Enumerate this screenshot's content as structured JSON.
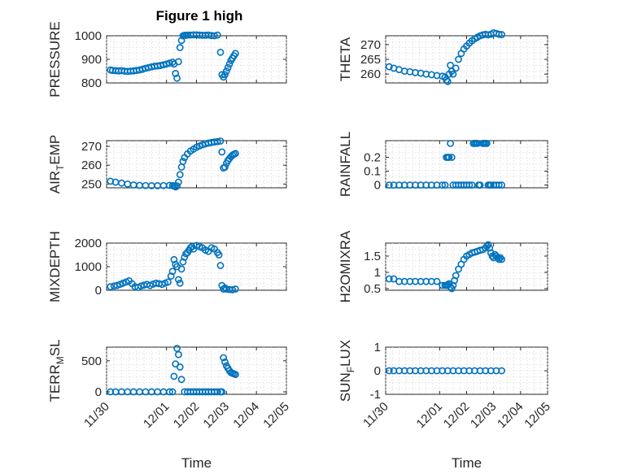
{
  "figure": {
    "title": "Figure 1 high",
    "colors": {
      "marker": "#0072BD",
      "axis": "#262626",
      "grid": "#d9d9d9"
    }
  },
  "chart_data": [
    {
      "type": "scatter",
      "ylabel": "PRESSURE",
      "ylim": [
        800,
        1000
      ],
      "yticks": [
        "800",
        "900",
        "1000"
      ],
      "xlim": [
        "11/30",
        "12/05"
      ],
      "xticks": [
        "11/30",
        "12/01",
        "12/02",
        "12/03",
        "12/04",
        "12/05"
      ],
      "xticklabels_shown": false,
      "grid": true,
      "series": [
        {
          "x": [
            0.13,
            0.2,
            0.3,
            0.4,
            0.5,
            0.6,
            0.7,
            0.8,
            0.9,
            1.0,
            1.1,
            1.2,
            1.3,
            1.4,
            1.5,
            1.6,
            1.7,
            1.8,
            1.9,
            2.0,
            2.1,
            2.2,
            2.25,
            2.3,
            2.35,
            2.4,
            2.45,
            2.5,
            2.55,
            2.6,
            2.65,
            2.7,
            2.8,
            2.9,
            3.0,
            3.1,
            3.2,
            3.3,
            3.4,
            3.5,
            3.6,
            3.7,
            3.8,
            3.85,
            3.9,
            3.95,
            4.0,
            4.05,
            4.1,
            4.15,
            4.2,
            4.25,
            4.3
          ],
          "y": [
            855,
            853,
            852,
            851,
            852,
            850,
            849,
            850,
            851,
            853,
            855,
            858,
            862,
            865,
            868,
            871,
            872,
            874,
            877,
            880,
            884,
            888,
            880,
            840,
            820,
            890,
            950,
            980,
            1000,
            1002,
            1002,
            1003,
            1003,
            1004,
            1004,
            1003,
            1002,
            1002,
            1003,
            1001,
            1000,
            1003,
            930,
            835,
            825,
            835,
            850,
            865,
            880,
            895,
            905,
            915,
            925
          ]
        }
      ]
    },
    {
      "type": "scatter",
      "ylabel": "THETA",
      "ylim": [
        257,
        273
      ],
      "yticks": [
        "260",
        "265",
        "270"
      ],
      "xlim": [
        "11/30",
        "12/05"
      ],
      "xticks": [
        "11/30",
        "12/01",
        "12/02",
        "12/03",
        "12/04",
        "12/05"
      ],
      "xticklabels_shown": false,
      "grid": true,
      "series": [
        {
          "x": [
            0.13,
            0.3,
            0.5,
            0.7,
            0.9,
            1.1,
            1.3,
            1.5,
            1.7,
            1.9,
            2.1,
            2.2,
            2.25,
            2.3,
            2.35,
            2.4,
            2.45,
            2.5,
            2.6,
            2.7,
            2.8,
            2.9,
            3.0,
            3.1,
            3.2,
            3.3,
            3.4,
            3.5,
            3.6,
            3.7,
            3.8,
            3.9,
            4.0,
            4.1,
            4.2,
            4.3
          ],
          "y": [
            262.5,
            262,
            261.5,
            261,
            260.8,
            260.5,
            260.3,
            260,
            259.8,
            259.5,
            259.3,
            259,
            258,
            257.5,
            260,
            263,
            261,
            260,
            262,
            265,
            267,
            268.5,
            269.5,
            270.5,
            271.3,
            272,
            272.5,
            273,
            273.3,
            273.5,
            273.3,
            273.5,
            274,
            273.8,
            273.5,
            273.4
          ]
        }
      ]
    },
    {
      "type": "scatter",
      "ylabel": "AIR_TEMP",
      "ylim": [
        248,
        273
      ],
      "yticks": [
        "250",
        "260",
        "270"
      ],
      "xlim": [
        "11/30",
        "12/05"
      ],
      "xticks": [
        "11/30",
        "12/01",
        "12/02",
        "12/03",
        "12/04",
        "12/05"
      ],
      "xticklabels_shown": false,
      "grid": true,
      "series": [
        {
          "x": [
            0.13,
            0.3,
            0.5,
            0.7,
            0.9,
            1.1,
            1.3,
            1.5,
            1.7,
            1.9,
            2.1,
            2.2,
            2.25,
            2.3,
            2.35,
            2.4,
            2.45,
            2.5,
            2.55,
            2.6,
            2.7,
            2.8,
            2.9,
            3.0,
            3.1,
            3.2,
            3.3,
            3.4,
            3.5,
            3.6,
            3.7,
            3.8,
            3.85,
            3.9,
            3.95,
            4.0,
            4.05,
            4.1,
            4.15,
            4.2,
            4.25,
            4.3
          ],
          "y": [
            251.5,
            251,
            250.5,
            250,
            249.5,
            249.3,
            249.2,
            249.1,
            249.1,
            249.2,
            249.3,
            249.2,
            249,
            248.5,
            249,
            251,
            255,
            259,
            262,
            264,
            266,
            267.5,
            268.5,
            269.5,
            270.2,
            270.8,
            271.3,
            271.7,
            272,
            272.3,
            272.5,
            272.8,
            267,
            258.5,
            259,
            261,
            262.5,
            263.5,
            264.5,
            265.3,
            265.8,
            266.2
          ]
        }
      ]
    },
    {
      "type": "scatter",
      "ylabel": "RAINFALL",
      "ylim": [
        -0.02,
        0.32
      ],
      "yticks": [
        "0",
        "0.1",
        "0.2"
      ],
      "xlim": [
        "11/30",
        "12/05"
      ],
      "xticks": [
        "11/30",
        "12/01",
        "12/02",
        "12/03",
        "12/04",
        "12/05"
      ],
      "xticklabels_shown": false,
      "grid": true,
      "series": [
        {
          "x": [
            0.13,
            0.3,
            0.5,
            0.7,
            0.9,
            1.1,
            1.3,
            1.5,
            1.7,
            1.9,
            2.1,
            2.2,
            2.25,
            2.3,
            2.35,
            2.4,
            2.45,
            2.5,
            2.6,
            2.7,
            2.8,
            2.9,
            3.0,
            3.1,
            3.2,
            3.25,
            3.3,
            3.35,
            3.4,
            3.45,
            3.5,
            3.6,
            3.65,
            3.7,
            3.75,
            3.8,
            3.85,
            3.9,
            4.0,
            4.1,
            4.2,
            4.3
          ],
          "y": [
            0,
            0,
            0,
            0,
            0,
            0,
            0,
            0,
            0,
            0,
            0,
            0,
            0.2,
            0.2,
            0.2,
            0.3,
            0.2,
            0,
            0,
            0,
            0,
            0,
            0,
            0,
            0,
            0.3,
            0.3,
            0.3,
            0.3,
            0,
            0,
            0.3,
            0.3,
            0.3,
            0.3,
            0,
            0,
            0,
            0,
            0,
            0,
            0
          ]
        }
      ]
    },
    {
      "type": "scatter",
      "ylabel": "MIXDEPTH",
      "ylim": [
        0,
        2000
      ],
      "yticks": [
        "0",
        "1000",
        "2000"
      ],
      "xlim": [
        "11/30",
        "12/05"
      ],
      "xticks": [
        "11/30",
        "12/01",
        "12/02",
        "12/03",
        "12/04",
        "12/05"
      ],
      "xticklabels_shown": false,
      "grid": true,
      "series": [
        {
          "x": [
            0.13,
            0.25,
            0.35,
            0.45,
            0.55,
            0.65,
            0.75,
            0.85,
            0.95,
            1.05,
            1.15,
            1.25,
            1.35,
            1.45,
            1.55,
            1.65,
            1.75,
            1.85,
            1.95,
            2.05,
            2.15,
            2.2,
            2.25,
            2.3,
            2.35,
            2.4,
            2.45,
            2.5,
            2.55,
            2.6,
            2.65,
            2.7,
            2.75,
            2.8,
            2.85,
            2.9,
            3.0,
            3.1,
            3.2,
            3.3,
            3.4,
            3.5,
            3.6,
            3.7,
            3.75,
            3.8,
            3.85,
            3.9,
            3.95,
            4.0,
            4.1,
            4.2,
            4.3
          ],
          "y": [
            150,
            180,
            200,
            250,
            300,
            350,
            400,
            280,
            150,
            120,
            180,
            220,
            250,
            200,
            260,
            300,
            280,
            250,
            300,
            350,
            600,
            800,
            1300,
            1100,
            1000,
            450,
            300,
            900,
            1200,
            1400,
            1550,
            1600,
            1700,
            1800,
            1850,
            1750,
            1900,
            1850,
            1800,
            1700,
            1650,
            1800,
            1750,
            1600,
            1500,
            1050,
            200,
            50,
            100,
            50,
            30,
            20,
            50
          ]
        }
      ]
    },
    {
      "type": "scatter",
      "ylabel": "H2OMIXRA",
      "ylim": [
        0.45,
        1.9
      ],
      "yticks": [
        "0.5",
        "1",
        "1.5"
      ],
      "xlim": [
        "11/30",
        "12/05"
      ],
      "xticks": [
        "11/30",
        "12/01",
        "12/02",
        "12/03",
        "12/04",
        "12/05"
      ],
      "xticklabels_shown": false,
      "grid": true,
      "series": [
        {
          "x": [
            0.13,
            0.3,
            0.5,
            0.7,
            0.9,
            1.1,
            1.3,
            1.5,
            1.7,
            1.9,
            2.1,
            2.2,
            2.25,
            2.3,
            2.35,
            2.4,
            2.45,
            2.5,
            2.55,
            2.6,
            2.7,
            2.8,
            2.9,
            3.0,
            3.1,
            3.2,
            3.3,
            3.4,
            3.5,
            3.6,
            3.7,
            3.75,
            3.8,
            3.85,
            3.9,
            3.95,
            4.0,
            4.05,
            4.1,
            4.15,
            4.2,
            4.25,
            4.3
          ],
          "y": [
            0.8,
            0.8,
            0.72,
            0.72,
            0.72,
            0.72,
            0.72,
            0.72,
            0.72,
            0.72,
            0.6,
            0.6,
            0.6,
            0.62,
            0.65,
            0.55,
            0.5,
            0.6,
            0.75,
            0.9,
            1.1,
            1.25,
            1.4,
            1.5,
            1.55,
            1.6,
            1.62,
            1.65,
            1.68,
            1.7,
            1.75,
            1.8,
            1.85,
            1.75,
            1.6,
            1.5,
            1.45,
            1.55,
            1.5,
            1.45,
            1.4,
            1.45,
            1.4
          ]
        }
      ]
    },
    {
      "type": "scatter",
      "ylabel": "TERR_MSL",
      "ylim": [
        -40,
        720
      ],
      "yticks": [
        "0",
        "500"
      ],
      "xlim": [
        "11/30",
        "12/05"
      ],
      "xticks": [
        "11/30",
        "12/01",
        "12/02",
        "12/03",
        "12/04",
        "12/05"
      ],
      "xticklabels_shown": true,
      "xlabel": "Time",
      "grid": true,
      "series": [
        {
          "x": [
            0.13,
            0.3,
            0.5,
            0.7,
            0.9,
            1.1,
            1.3,
            1.5,
            1.7,
            1.9,
            2.1,
            2.2,
            2.25,
            2.3,
            2.35,
            2.4,
            2.45,
            2.5,
            2.6,
            2.7,
            2.8,
            2.9,
            3.0,
            3.1,
            3.2,
            3.3,
            3.4,
            3.5,
            3.6,
            3.7,
            3.8,
            3.85,
            3.9,
            3.95,
            4.0,
            4.05,
            4.1,
            4.15,
            4.2,
            4.25,
            4.3
          ],
          "y": [
            0,
            0,
            0,
            0,
            0,
            0,
            0,
            0,
            0,
            0,
            0,
            0,
            250,
            450,
            700,
            600,
            400,
            200,
            0,
            0,
            0,
            0,
            0,
            0,
            0,
            0,
            0,
            0,
            0,
            0,
            0,
            0,
            550,
            480,
            420,
            380,
            340,
            310,
            300,
            290,
            280
          ]
        }
      ]
    },
    {
      "type": "scatter",
      "ylabel": "SUN_FLUX",
      "ylim": [
        -1,
        1
      ],
      "yticks": [
        "-1",
        "0",
        "1"
      ],
      "xlim": [
        "11/30",
        "12/05"
      ],
      "xticks": [
        "11/30",
        "12/01",
        "12/02",
        "12/03",
        "12/04",
        "12/05"
      ],
      "xticklabels_shown": true,
      "xlabel": "Time",
      "grid": true,
      "series": [
        {
          "x": [
            0.13,
            0.3,
            0.5,
            0.7,
            0.9,
            1.1,
            1.3,
            1.5,
            1.7,
            1.9,
            2.1,
            2.3,
            2.5,
            2.7,
            2.9,
            3.1,
            3.3,
            3.5,
            3.7,
            3.9,
            4.1,
            4.3
          ],
          "y": [
            0,
            0,
            0,
            0,
            0,
            0,
            0,
            0,
            0,
            0,
            0,
            0,
            0,
            0,
            0,
            0,
            0,
            0,
            0,
            0,
            0,
            0
          ]
        }
      ]
    }
  ]
}
